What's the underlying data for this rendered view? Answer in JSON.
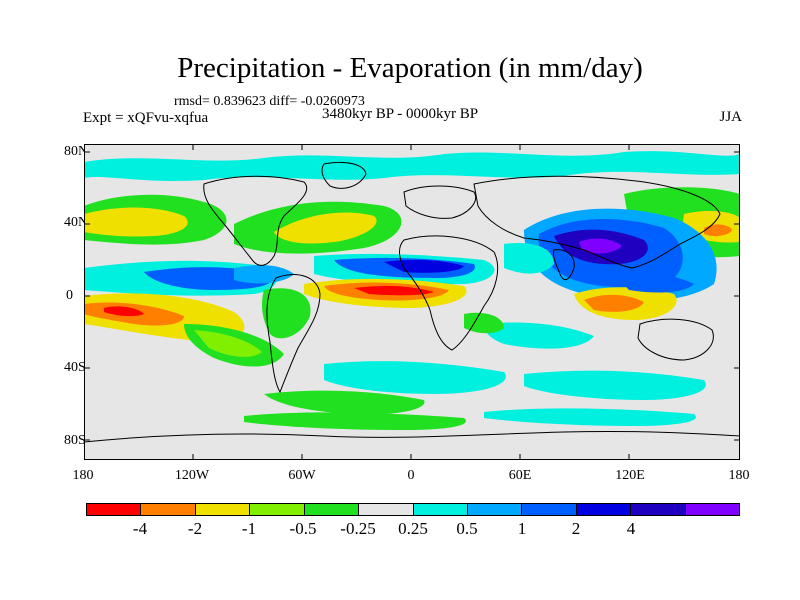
{
  "title": "Precipitation - Evaporation (in mm/day)",
  "stats": "rmsd= 0.839623 diff= -0.0260973",
  "experiment": "Expt = xQFvu-xqfua",
  "period": "3480kyr BP - 0000kyr BP",
  "season": "JJA",
  "lat_labels": [
    "80N",
    "40N",
    "0",
    "40S",
    "80S"
  ],
  "lon_labels": [
    "180",
    "120W",
    "60W",
    "0",
    "60E",
    "120E",
    "180"
  ],
  "colorbar": {
    "labels": [
      "-4",
      "-2",
      "-1",
      "-0.5",
      "-0.25",
      "0.25",
      "0.5",
      "1",
      "2",
      "4"
    ],
    "colors": [
      "#ff0000",
      "#ff8000",
      "#f0e000",
      "#80f000",
      "#20e020",
      "#e6e6e6",
      "#00f0e0",
      "#00a8ff",
      "#0060ff",
      "#0000e0",
      "#2000c0",
      "#8000ff"
    ]
  },
  "map_colors": {
    "neutral": "#e6e6e6",
    "red": "#ff0000",
    "orange": "#ff8000",
    "yellow": "#f0e000",
    "lime": "#80f000",
    "green": "#20e020",
    "cyan": "#00f0e0",
    "lightblue": "#00a8ff",
    "blue": "#0060ff",
    "darkblue": "#0000e0",
    "navy": "#2000c0",
    "purple": "#8000ff",
    "coast": "#000000"
  }
}
